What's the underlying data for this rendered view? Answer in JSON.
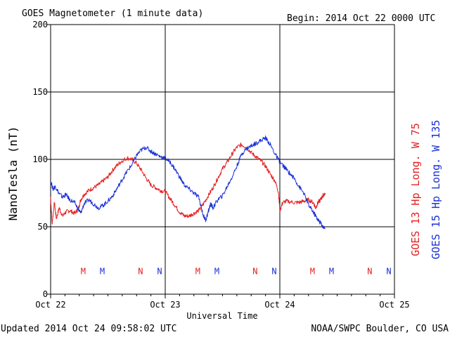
{
  "header": {
    "title": "GOES Magnetometer (1 minute data)",
    "begin": "Begin:  2014 Oct 22 0000 UTC"
  },
  "footer": {
    "updated": "Updated 2014 Oct 24 09:58:02 UTC",
    "credit": "NOAA/SWPC Boulder, CO USA"
  },
  "colors": {
    "goes13": "#e32020",
    "goes15": "#1a2fd6",
    "grid": "#000000"
  },
  "chart_data": {
    "type": "line",
    "title": "GOES Magnetometer (1 minute data)",
    "xlabel": "Universal Time",
    "ylabel": "NanoTesla (nT)",
    "xlim": [
      0,
      72
    ],
    "ylim": [
      0,
      200
    ],
    "x_unit": "hours since 2014 Oct 22 0000 UTC",
    "x_ticks": [
      {
        "x": 0,
        "label": "Oct 22"
      },
      {
        "x": 24,
        "label": "Oct 23"
      },
      {
        "x": 48,
        "label": "Oct 24"
      },
      {
        "x": 72,
        "label": "Oct 25"
      }
    ],
    "y_ticks": [
      0,
      50,
      100,
      150,
      200
    ],
    "grid": true,
    "series": [
      {
        "name": "GOES 13 Hp  Long. W 75",
        "color": "#e32020",
        "points": [
          [
            0.0,
            72
          ],
          [
            0.3,
            52
          ],
          [
            0.8,
            68
          ],
          [
            1.2,
            56
          ],
          [
            1.8,
            64
          ],
          [
            2.5,
            58
          ],
          [
            3.2,
            61
          ],
          [
            4.0,
            62
          ],
          [
            5.0,
            60
          ],
          [
            5.8,
            63
          ],
          [
            6.3,
            70
          ],
          [
            7.0,
            74
          ],
          [
            8.0,
            77
          ],
          [
            9.0,
            79
          ],
          [
            10.0,
            81
          ],
          [
            11.0,
            84
          ],
          [
            12.0,
            87
          ],
          [
            13.0,
            92
          ],
          [
            14.0,
            96
          ],
          [
            15.0,
            99
          ],
          [
            16.0,
            101
          ],
          [
            17.0,
            100
          ],
          [
            18.0,
            97
          ],
          [
            19.0,
            92
          ],
          [
            20.0,
            86
          ],
          [
            21.0,
            81
          ],
          [
            22.0,
            79
          ],
          [
            23.0,
            77
          ],
          [
            24.0,
            76
          ],
          [
            25.0,
            71
          ],
          [
            26.0,
            66
          ],
          [
            27.0,
            61
          ],
          [
            28.0,
            58
          ],
          [
            29.0,
            58
          ],
          [
            30.0,
            60
          ],
          [
            31.0,
            62
          ],
          [
            32.0,
            67
          ],
          [
            33.0,
            73
          ],
          [
            34.0,
            79
          ],
          [
            35.0,
            86
          ],
          [
            36.0,
            93
          ],
          [
            37.0,
            98
          ],
          [
            38.0,
            104
          ],
          [
            39.0,
            109
          ],
          [
            40.0,
            111
          ],
          [
            41.0,
            109
          ],
          [
            42.0,
            105
          ],
          [
            43.0,
            102
          ],
          [
            44.0,
            99
          ],
          [
            45.0,
            95
          ],
          [
            46.0,
            89
          ],
          [
            47.0,
            84
          ],
          [
            47.7,
            76
          ],
          [
            48.0,
            62
          ],
          [
            48.6,
            68
          ],
          [
            49.5,
            69
          ],
          [
            51.0,
            68
          ],
          [
            52.0,
            68
          ],
          [
            53.0,
            69
          ],
          [
            54.0,
            70
          ],
          [
            55.0,
            68
          ],
          [
            55.5,
            64
          ],
          [
            56.0,
            68
          ],
          [
            56.5,
            70
          ],
          [
            57.0,
            73
          ],
          [
            57.5,
            75
          ]
        ]
      },
      {
        "name": "GOES 15 Hp  Long. W 135",
        "color": "#1a2fd6",
        "points": [
          [
            0.0,
            84
          ],
          [
            0.5,
            78
          ],
          [
            1.0,
            80
          ],
          [
            1.7,
            75
          ],
          [
            2.5,
            72
          ],
          [
            3.2,
            74
          ],
          [
            4.0,
            70
          ],
          [
            5.0,
            68
          ],
          [
            5.8,
            63
          ],
          [
            6.3,
            60
          ],
          [
            7.0,
            67
          ],
          [
            8.0,
            70
          ],
          [
            9.0,
            67
          ],
          [
            10.0,
            64
          ],
          [
            11.0,
            66
          ],
          [
            12.0,
            69
          ],
          [
            13.0,
            73
          ],
          [
            14.0,
            79
          ],
          [
            15.0,
            85
          ],
          [
            16.0,
            91
          ],
          [
            17.0,
            96
          ],
          [
            18.0,
            103
          ],
          [
            19.0,
            107
          ],
          [
            20.0,
            109
          ],
          [
            21.0,
            106
          ],
          [
            22.0,
            104
          ],
          [
            23.0,
            102
          ],
          [
            24.0,
            101
          ],
          [
            25.0,
            98
          ],
          [
            26.0,
            93
          ],
          [
            27.0,
            87
          ],
          [
            28.0,
            81
          ],
          [
            29.0,
            78
          ],
          [
            30.0,
            75
          ],
          [
            31.0,
            72
          ],
          [
            32.0,
            58
          ],
          [
            32.5,
            55
          ],
          [
            33.0,
            61
          ],
          [
            33.5,
            67
          ],
          [
            34.0,
            64
          ],
          [
            35.0,
            70
          ],
          [
            36.0,
            73
          ],
          [
            37.0,
            80
          ],
          [
            38.0,
            87
          ],
          [
            39.0,
            95
          ],
          [
            40.0,
            104
          ],
          [
            41.0,
            108
          ],
          [
            42.0,
            110
          ],
          [
            43.0,
            112
          ],
          [
            44.0,
            114
          ],
          [
            45.0,
            116
          ],
          [
            46.0,
            111
          ],
          [
            47.0,
            104
          ],
          [
            48.0,
            98
          ],
          [
            49.0,
            94
          ],
          [
            50.0,
            90
          ],
          [
            51.0,
            86
          ],
          [
            52.0,
            80
          ],
          [
            53.0,
            75
          ],
          [
            54.0,
            66
          ],
          [
            55.0,
            61
          ],
          [
            55.5,
            58
          ],
          [
            56.0,
            55
          ],
          [
            56.5,
            53
          ],
          [
            57.0,
            50
          ],
          [
            57.5,
            49
          ]
        ]
      }
    ],
    "annotations": {
      "y_value": 17,
      "items": [
        {
          "x": 8,
          "text": "M",
          "series": 0
        },
        {
          "x": 12,
          "text": "M",
          "series": 1
        },
        {
          "x": 20,
          "text": "N",
          "series": 0
        },
        {
          "x": 24,
          "text": "N",
          "series": 1
        },
        {
          "x": 32,
          "text": "M",
          "series": 0
        },
        {
          "x": 36,
          "text": "M",
          "series": 1
        },
        {
          "x": 44,
          "text": "N",
          "series": 0
        },
        {
          "x": 48,
          "text": "N",
          "series": 1
        },
        {
          "x": 56,
          "text": "M",
          "series": 0
        },
        {
          "x": 60,
          "text": "M",
          "series": 1
        },
        {
          "x": 68,
          "text": "N",
          "series": 0
        },
        {
          "x": 72,
          "text": "N",
          "series": 1
        }
      ]
    }
  }
}
